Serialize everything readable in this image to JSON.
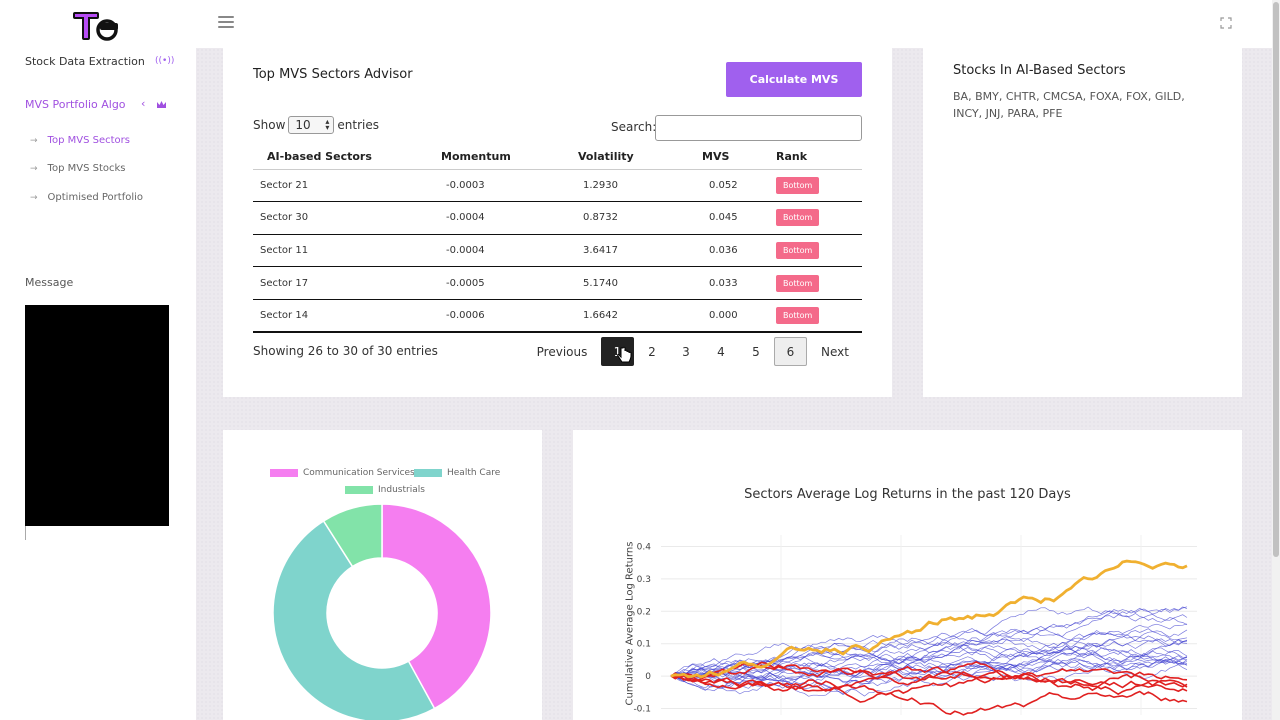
{
  "sidebar": {
    "items": [
      {
        "label": "Stock Data Extraction"
      },
      {
        "label": "MVS Portfolio Algo"
      }
    ],
    "subitems": [
      {
        "label": "Top MVS Sectors"
      },
      {
        "label": "Top MVS Stocks"
      },
      {
        "label": "Optimised Portfolio"
      }
    ],
    "message_label": "Message"
  },
  "advisor": {
    "title": "Top MVS Sectors Advisor",
    "calc_button": "Calculate MVS",
    "show_label": "Show",
    "entries_value": "10",
    "entries_label": "entries",
    "search_label": "Search:",
    "search_value": "",
    "columns": [
      "AI-based Sectors",
      "Momentum",
      "Volatility",
      "MVS",
      "Rank"
    ],
    "rows": [
      {
        "sector": "Sector 21",
        "momentum": "-0.0003",
        "volatility": "1.2930",
        "mvs": "0.052",
        "rank": "Bottom"
      },
      {
        "sector": "Sector 30",
        "momentum": "-0.0004",
        "volatility": "0.8732",
        "mvs": "0.045",
        "rank": "Bottom"
      },
      {
        "sector": "Sector 11",
        "momentum": "-0.0004",
        "volatility": "3.6417",
        "mvs": "0.036",
        "rank": "Bottom"
      },
      {
        "sector": "Sector 17",
        "momentum": "-0.0005",
        "volatility": "5.1740",
        "mvs": "0.033",
        "rank": "Bottom"
      },
      {
        "sector": "Sector 14",
        "momentum": "-0.0006",
        "volatility": "1.6642",
        "mvs": "0.000",
        "rank": "Bottom"
      }
    ],
    "info": "Showing 26 to 30 of 30 entries",
    "pagination": {
      "previous": "Previous",
      "pages": [
        "1",
        "2",
        "3",
        "4",
        "5",
        "6"
      ],
      "next": "Next",
      "current": "6",
      "hovered": "1"
    }
  },
  "stocks": {
    "title": "Stocks In AI-Based Sectors",
    "list": "BA, BMY, CHTR, CMCSA, FOXA, FOX, GILD, INCY, JNJ, PARA, PFE"
  },
  "chart_data": [
    {
      "type": "pie",
      "legend": [
        "Communication Services",
        "Health Care",
        "Industrials"
      ],
      "values": [
        42,
        49,
        9
      ],
      "colors": [
        "#f57ef0",
        "#7fd4cc",
        "#82e3a9"
      ]
    },
    {
      "type": "line",
      "title": "Sectors Average Log Returns in the past 120 Days",
      "ylabel": "Cumulative Average Log Returns",
      "yticks": [
        "0.4",
        "0.3",
        "0.2",
        "0.1",
        "0",
        "-0.1"
      ],
      "ylim": [
        -0.12,
        0.42
      ],
      "series_summary": [
        {
          "color": "#f0b030",
          "final_value": 0.34
        },
        {
          "color": "#4040d0",
          "final_value_range": [
            0.0,
            0.22
          ]
        },
        {
          "color": "#e02020",
          "final_value_range": [
            -0.08,
            0.06
          ]
        }
      ]
    }
  ]
}
